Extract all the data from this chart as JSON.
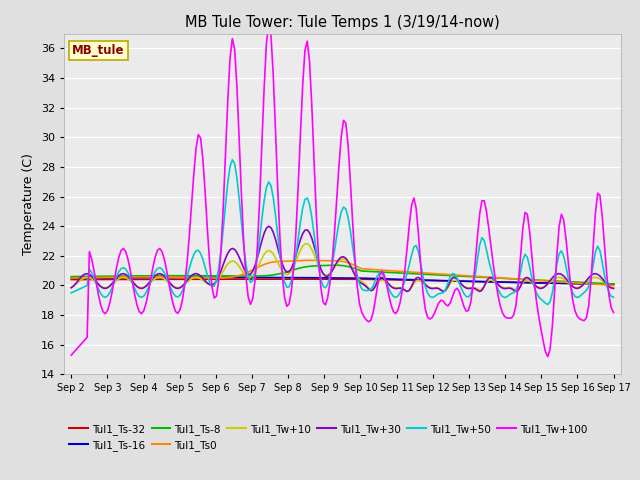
{
  "title": "MB Tule Tower: Tule Temps 1 (3/19/14-now)",
  "ylabel": "Temperature (C)",
  "watermark": "MB_tule",
  "ylim": [
    14,
    37
  ],
  "yticks": [
    14,
    16,
    18,
    20,
    22,
    24,
    26,
    28,
    30,
    32,
    34,
    36
  ],
  "xtick_labels": [
    "Sep 2",
    "Sep 3",
    "Sep 4",
    "Sep 5",
    "Sep 6",
    "Sep 7",
    "Sep 8",
    "Sep 9",
    "Sep 10",
    "Sep 11",
    "Sep 12",
    "Sep 13",
    "Sep 14",
    "Sep 15",
    "Sep 16",
    "Sep 17"
  ],
  "series": [
    {
      "label": "Tul1_Ts-32",
      "color": "#cc0000"
    },
    {
      "label": "Tul1_Ts-16",
      "color": "#0000cc"
    },
    {
      "label": "Tul1_Ts-8",
      "color": "#00bb00"
    },
    {
      "label": "Tul1_Ts0",
      "color": "#ff8800"
    },
    {
      "label": "Tul1_Tw+10",
      "color": "#cccc00"
    },
    {
      "label": "Tul1_Tw+30",
      "color": "#8800cc"
    },
    {
      "label": "Tul1_Tw+50",
      "color": "#00cccc"
    },
    {
      "label": "Tul1_Tw+100",
      "color": "#ff00ff"
    }
  ]
}
